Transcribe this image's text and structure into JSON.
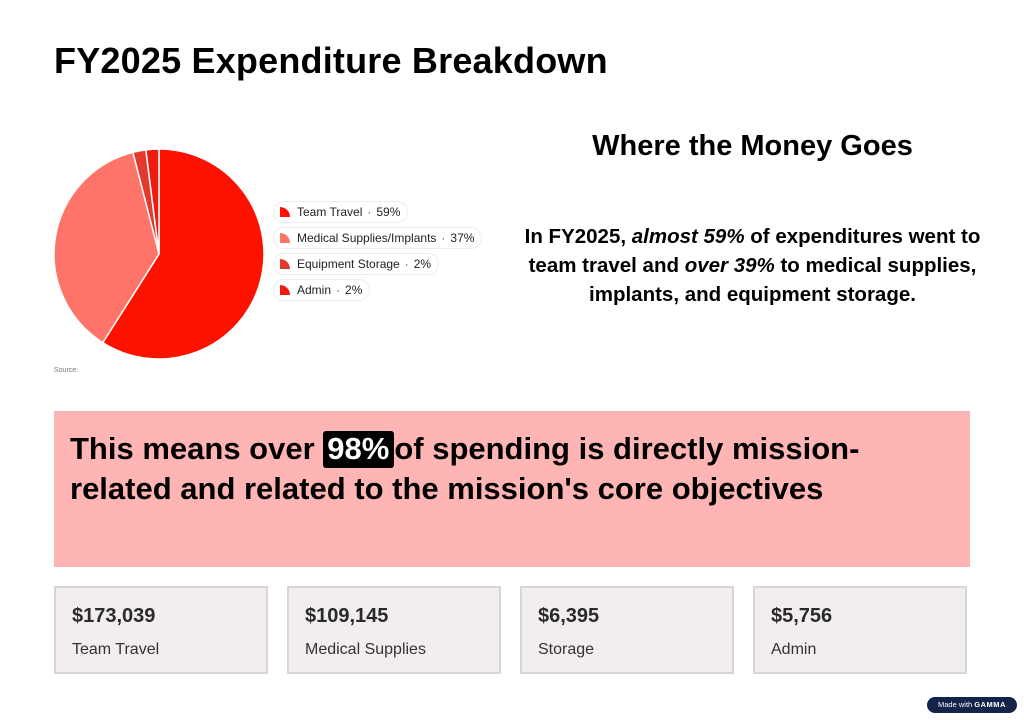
{
  "page": {
    "title": "FY2025 Expenditure Breakdown",
    "source_label": "Source:",
    "badge_prefix": "Made with",
    "badge_brand": "GAMMA"
  },
  "chart_data": {
    "type": "pie",
    "title": "",
    "categories": [
      "Team Travel",
      "Medical Supplies/Implants",
      "Equipment Storage",
      "Admin"
    ],
    "values": [
      59,
      37,
      2,
      2
    ],
    "value_labels": [
      "59%",
      "37%",
      "2%",
      "2%"
    ],
    "colors": [
      "#ff1100",
      "#ff7468",
      "#e43a2e",
      "#ee1b10"
    ],
    "legend_position": "right",
    "legend_separator": "·"
  },
  "right": {
    "heading": "Where the Money Goes",
    "summary": {
      "part1": "In FY2025,",
      "em1": "almost 59%",
      "part2": "of expenditures went to team travel and",
      "em2": "over 39%",
      "part3": "to medical supplies, implants, and equipment storage."
    }
  },
  "banner": {
    "before": "This means over",
    "highlight": "98%",
    "after": "of spending is directly mission-related and related to the mission's core objectives",
    "background": "#ffb5b3"
  },
  "stats": [
    {
      "value": "$173,039",
      "label": "Team Travel"
    },
    {
      "value": "$109,145",
      "label": "Medical Supplies"
    },
    {
      "value": "$6,395",
      "label": "Storage"
    },
    {
      "value": "$5,756",
      "label": "Admin"
    }
  ]
}
